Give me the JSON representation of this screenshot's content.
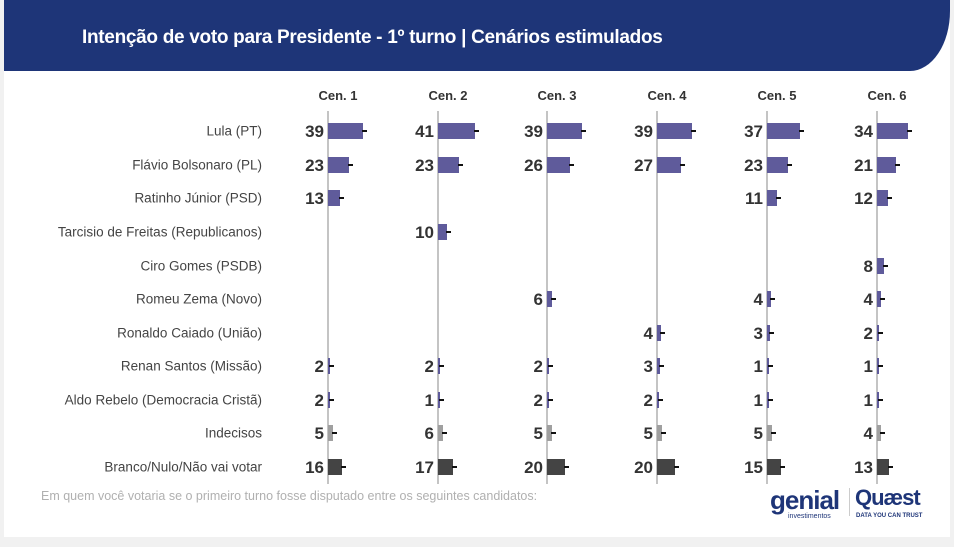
{
  "title": "Intenção de voto para Presidente - 1º turno | Cenários estimulados",
  "note": "Em quem você votaria se o primeiro turno fosse disputado entre os seguintes candidatos:",
  "logos": {
    "genial": "genial",
    "genial_sub": "investimentos",
    "quaest": "Quæst",
    "quaest_sub": "DATA YOU CAN TRUST"
  },
  "colors": {
    "candidate": "#5f5b9b",
    "undecided": "#a0a0a0",
    "blank": "#444444",
    "header": "#1e3578"
  },
  "chart_data": {
    "type": "bar",
    "orientation": "horizontal",
    "scenarios": [
      "Cen. 1",
      "Cen. 2",
      "Cen. 3",
      "Cen. 4",
      "Cen. 5",
      "Cen. 6"
    ],
    "categories": [
      "Lula (PT)",
      "Flávio Bolsonaro (PL)",
      "Ratinho Júnior (PSD)",
      "Tarcisio de Freitas (Republicanos)",
      "Ciro Gomes (PSDB)",
      "Romeu Zema (Novo)",
      "Ronaldo Caiado (União)",
      "Renan Santos (Missão)",
      "Aldo Rebelo (Democracia Cristã)",
      "Indecisos",
      "Branco/Nulo/Não vai votar"
    ],
    "category_types": [
      "candidate",
      "candidate",
      "candidate",
      "candidate",
      "candidate",
      "candidate",
      "candidate",
      "candidate",
      "candidate",
      "undecided",
      "blank"
    ],
    "values": [
      [
        39,
        41,
        39,
        39,
        37,
        34
      ],
      [
        23,
        23,
        26,
        27,
        23,
        21
      ],
      [
        13,
        null,
        null,
        null,
        11,
        12
      ],
      [
        null,
        10,
        null,
        null,
        null,
        null
      ],
      [
        null,
        null,
        null,
        null,
        null,
        8
      ],
      [
        null,
        null,
        6,
        null,
        4,
        4
      ],
      [
        null,
        null,
        null,
        4,
        3,
        2
      ],
      [
        2,
        2,
        2,
        3,
        1,
        1
      ],
      [
        2,
        1,
        2,
        2,
        1,
        1
      ],
      [
        5,
        6,
        5,
        5,
        5,
        4
      ],
      [
        16,
        17,
        20,
        20,
        15,
        13
      ]
    ],
    "error_bars": true
  }
}
